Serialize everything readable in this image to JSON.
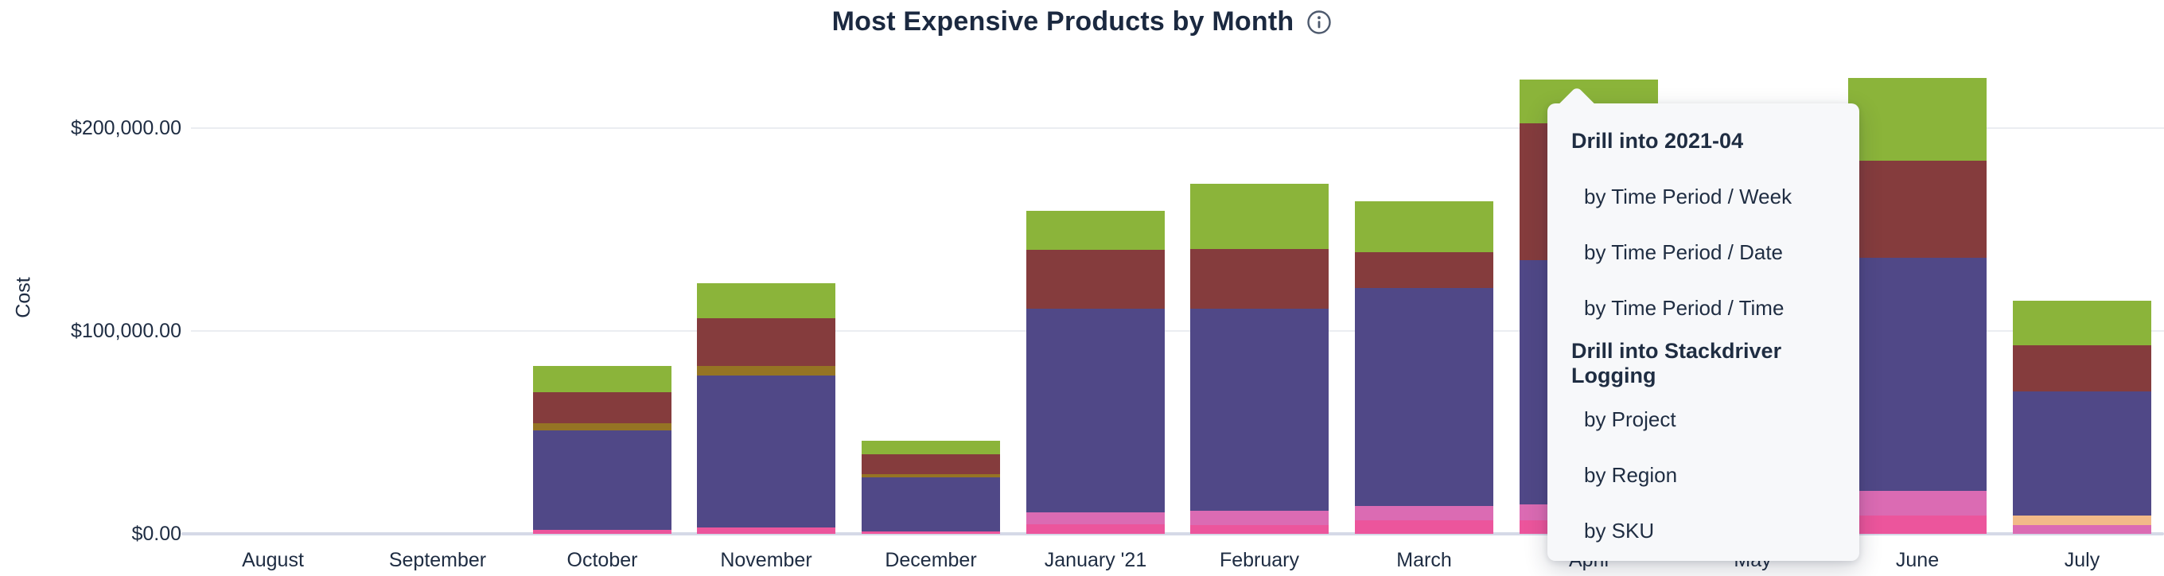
{
  "header": {
    "title": "Most Expensive Products by Month"
  },
  "chart_data": {
    "type": "bar",
    "stacked": true,
    "title": "Most Expensive Products by Month",
    "xlabel": "",
    "ylabel": "Cost",
    "ylim": [
      0,
      240000
    ],
    "grid": "horizontal",
    "legend": "none",
    "y_ticks": [
      {
        "label": "$0.00",
        "value": 0
      },
      {
        "label": "$100,000.00",
        "value": 100000
      },
      {
        "label": "$200,000.00",
        "value": 200000
      }
    ],
    "categories": [
      "August",
      "September",
      "October",
      "November",
      "December",
      "January '21",
      "February",
      "March",
      "April",
      "May",
      "June",
      "July"
    ],
    "palette": {
      "green": "#8BB43A",
      "maroon": "#853C3D",
      "olive": "#957424",
      "purple": "#504887",
      "orchid": "#DB6BB3",
      "pink": "#EC559C",
      "orange": "#F2BA88"
    },
    "note": "Dollar values estimated from bar pixel heights; May bar is fully hidden behind the drill menu overlay. Segments listed bottom-to-top.",
    "bars": [
      {
        "month": "August",
        "total": 0,
        "segments": []
      },
      {
        "month": "September",
        "total": 0,
        "segments": []
      },
      {
        "month": "October",
        "total": 82740,
        "segments": [
          {
            "color": "pink",
            "value": 1960
          },
          {
            "color": "purple",
            "value": 49020
          },
          {
            "color": "olive",
            "value": 3530
          },
          {
            "color": "maroon",
            "value": 15290
          },
          {
            "color": "green",
            "value": 12940
          }
        ]
      },
      {
        "month": "November",
        "total": 123530,
        "segments": [
          {
            "color": "pink",
            "value": 3140
          },
          {
            "color": "purple",
            "value": 74900
          },
          {
            "color": "olive",
            "value": 4710
          },
          {
            "color": "maroon",
            "value": 23530
          },
          {
            "color": "green",
            "value": 17250
          }
        ]
      },
      {
        "month": "December",
        "total": 45890,
        "segments": [
          {
            "color": "pink",
            "value": 1180
          },
          {
            "color": "purple",
            "value": 26670
          },
          {
            "color": "olive",
            "value": 1570
          },
          {
            "color": "maroon",
            "value": 9800
          },
          {
            "color": "green",
            "value": 6670
          }
        ]
      },
      {
        "month": "January '21",
        "total": 159220,
        "segments": [
          {
            "color": "pink",
            "value": 4710
          },
          {
            "color": "orchid",
            "value": 5880
          },
          {
            "color": "purple",
            "value": 100390
          },
          {
            "color": "maroon",
            "value": 29020
          },
          {
            "color": "green",
            "value": 19220
          }
        ]
      },
      {
        "month": "February",
        "total": 172550,
        "segments": [
          {
            "color": "pink",
            "value": 4310
          },
          {
            "color": "orchid",
            "value": 7060
          },
          {
            "color": "purple",
            "value": 99610
          },
          {
            "color": "maroon",
            "value": 29410
          },
          {
            "color": "green",
            "value": 32160
          }
        ]
      },
      {
        "month": "March",
        "total": 163930,
        "segments": [
          {
            "color": "pink",
            "value": 6670
          },
          {
            "color": "orchid",
            "value": 7060
          },
          {
            "color": "purple",
            "value": 107450
          },
          {
            "color": "maroon",
            "value": 17650
          },
          {
            "color": "green",
            "value": 25100
          }
        ]
      },
      {
        "month": "April",
        "total": 223920,
        "segments": [
          {
            "color": "pink",
            "value": 6670
          },
          {
            "color": "orchid",
            "value": 7840
          },
          {
            "color": "purple",
            "value": 120390
          },
          {
            "color": "maroon",
            "value": 67450
          },
          {
            "color": "green",
            "value": 21570
          }
        ]
      },
      {
        "month": "May",
        "total": null,
        "hidden": true,
        "segments": []
      },
      {
        "month": "June",
        "total": 224700,
        "segments": [
          {
            "color": "pink",
            "value": 9020
          },
          {
            "color": "orchid",
            "value": 12160
          },
          {
            "color": "purple",
            "value": 114900
          },
          {
            "color": "maroon",
            "value": 47840
          },
          {
            "color": "green",
            "value": 40780
          }
        ]
      },
      {
        "month": "July",
        "total": 114910,
        "segments": [
          {
            "color": "orchid",
            "value": 4310
          },
          {
            "color": "orange",
            "value": 4710
          },
          {
            "color": "purple",
            "value": 61180
          },
          {
            "color": "maroon",
            "value": 22750
          },
          {
            "color": "green",
            "value": 21960
          }
        ]
      }
    ]
  },
  "menu": {
    "sections": [
      {
        "header": "Drill into 2021-04",
        "items": [
          "by Time Period / Week",
          "by Time Period / Date",
          "by Time Period / Time"
        ]
      },
      {
        "header": "Drill into Stackdriver Logging",
        "items": [
          "by Project",
          "by Region",
          "by SKU"
        ]
      }
    ]
  },
  "colors": {
    "title_text": "#1b2940",
    "axis_text": "#1e2c42",
    "gridline": "#ebedf1",
    "baseline": "#d5d9e7",
    "menu_background": "#f7f8fa",
    "menu_text": "#1f2d42"
  }
}
